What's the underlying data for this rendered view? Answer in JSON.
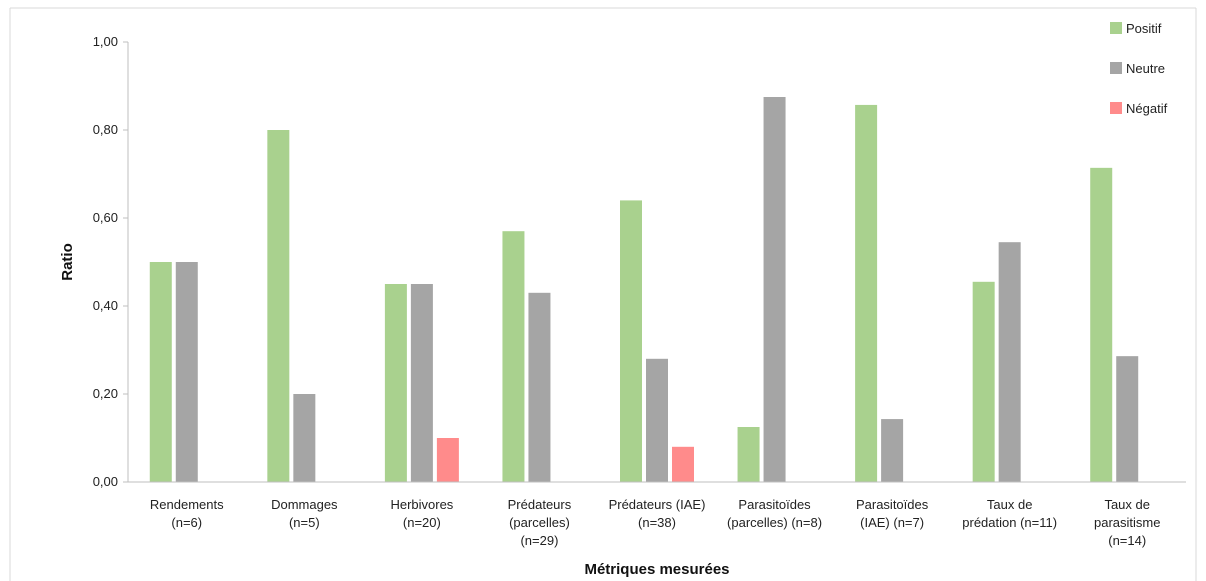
{
  "chart_data": {
    "type": "bar",
    "title": "",
    "xlabel": "Métriques mesurées",
    "ylabel": "Ratio",
    "ylim": [
      0,
      1
    ],
    "y_ticks": [
      0,
      0.2,
      0.4,
      0.6,
      0.8,
      1.0
    ],
    "y_tick_labels": [
      "0,00",
      "0,20",
      "0,40",
      "0,60",
      "0,80",
      "1,00"
    ],
    "grid": false,
    "legend_position": "top-right",
    "categories": [
      [
        "Rendements",
        "(n=6)"
      ],
      [
        "Dommages",
        "(n=5)"
      ],
      [
        "Herbivores",
        "(n=20)"
      ],
      [
        "Prédateurs",
        "(parcelles)",
        "(n=29)"
      ],
      [
        "Prédateurs (IAE)",
        "(n=38)"
      ],
      [
        "Parasitoïdes",
        "(parcelles) (n=8)"
      ],
      [
        "Parasitoïdes",
        "(IAE) (n=7)"
      ],
      [
        "Taux de",
        "prédation (n=11)"
      ],
      [
        "Taux de",
        "parasitisme",
        "(n=14)"
      ]
    ],
    "series": [
      {
        "name": "Positif",
        "color": "#a9d18e",
        "values": [
          0.5,
          0.8,
          0.45,
          0.57,
          0.64,
          0.125,
          0.857,
          0.455,
          0.714
        ]
      },
      {
        "name": "Neutre",
        "color": "#a5a5a5",
        "values": [
          0.5,
          0.2,
          0.45,
          0.43,
          0.28,
          0.875,
          0.143,
          0.545,
          0.286
        ]
      },
      {
        "name": "Négatif",
        "color": "#ff8b8b",
        "values": [
          0,
          0,
          0.1,
          0,
          0.08,
          0,
          0,
          0,
          0
        ]
      }
    ]
  }
}
